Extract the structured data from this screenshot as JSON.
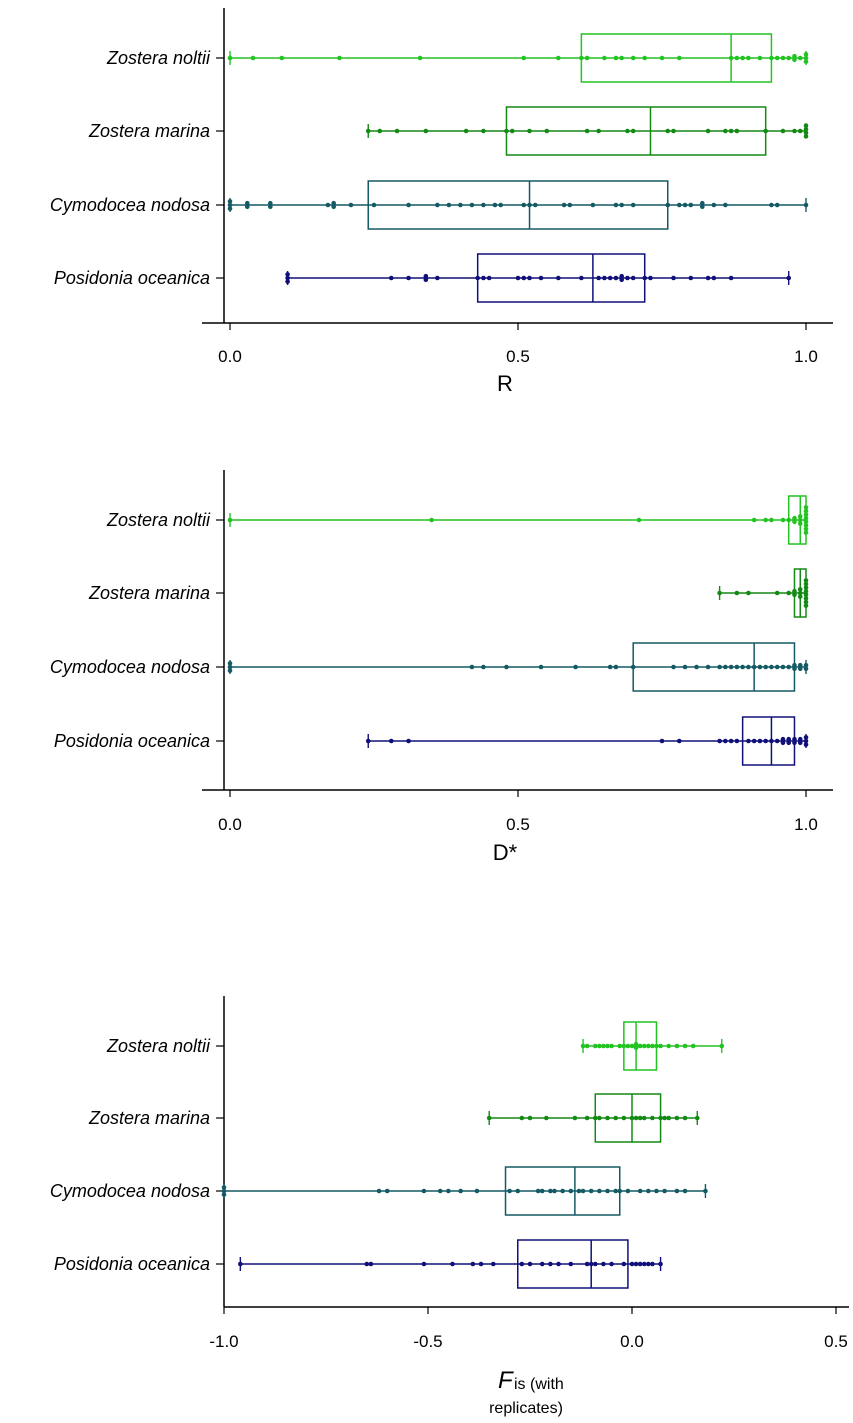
{
  "colors": {
    "Zostera noltii": "#22c422",
    "Zostera marina": "#138a13",
    "Cymodocea nodosa": "#145a64",
    "Posidonia oceanica": "#10107a"
  },
  "chart_data": [
    {
      "type": "box",
      "orientation": "horizontal",
      "xlabel": "R",
      "xlim": [
        -0.05,
        1.05
      ],
      "xticks": [
        0.0,
        0.5,
        1.0
      ],
      "xtick_labels": [
        "0.0",
        "0.5",
        "1.0"
      ],
      "categories": [
        "Zostera noltii",
        "Zostera marina",
        "Cymodocea nodosa",
        "Posidonia oceanica"
      ],
      "series": [
        {
          "name": "Zostera noltii",
          "whisker_low": 0.0,
          "q1": 0.61,
          "median": 0.87,
          "q3": 0.94,
          "whisker_high": 1.0,
          "points": [
            0.0,
            0.04,
            0.09,
            0.19,
            0.33,
            0.51,
            0.57,
            0.61,
            0.62,
            0.65,
            0.67,
            0.68,
            0.7,
            0.72,
            0.75,
            0.78,
            0.87,
            0.88,
            0.89,
            0.9,
            0.92,
            0.94,
            0.95,
            0.96,
            0.97,
            0.98,
            0.98,
            0.99,
            1.0,
            1.0,
            1.0
          ]
        },
        {
          "name": "Zostera marina",
          "whisker_low": 0.24,
          "q1": 0.48,
          "median": 0.73,
          "q3": 0.93,
          "whisker_high": 1.0,
          "points": [
            0.24,
            0.26,
            0.29,
            0.34,
            0.41,
            0.44,
            0.48,
            0.49,
            0.52,
            0.55,
            0.62,
            0.64,
            0.69,
            0.7,
            0.76,
            0.77,
            0.83,
            0.86,
            0.87,
            0.88,
            0.93,
            0.96,
            0.98,
            0.99,
            1.0,
            1.0,
            1.0,
            1.0
          ]
        },
        {
          "name": "Cymodocea nodosa",
          "whisker_low": 0.0,
          "q1": 0.24,
          "median": 0.52,
          "q3": 0.76,
          "whisker_high": 1.0,
          "points": [
            0.0,
            0.0,
            0.0,
            0.03,
            0.03,
            0.07,
            0.07,
            0.17,
            0.18,
            0.18,
            0.21,
            0.25,
            0.31,
            0.36,
            0.38,
            0.4,
            0.42,
            0.44,
            0.46,
            0.47,
            0.51,
            0.52,
            0.53,
            0.58,
            0.59,
            0.63,
            0.67,
            0.68,
            0.7,
            0.76,
            0.78,
            0.79,
            0.8,
            0.82,
            0.82,
            0.84,
            0.86,
            0.94,
            0.95,
            1.0
          ]
        },
        {
          "name": "Posidonia oceanica",
          "whisker_low": 0.1,
          "q1": 0.43,
          "median": 0.63,
          "q3": 0.72,
          "whisker_high": 0.97,
          "points": [
            0.1,
            0.1,
            0.1,
            0.28,
            0.31,
            0.34,
            0.34,
            0.36,
            0.43,
            0.44,
            0.45,
            0.5,
            0.51,
            0.52,
            0.54,
            0.57,
            0.61,
            0.64,
            0.65,
            0.66,
            0.67,
            0.68,
            0.68,
            0.69,
            0.7,
            0.72,
            0.73,
            0.77,
            0.8,
            0.83,
            0.84,
            0.87,
            0.97
          ]
        }
      ]
    },
    {
      "type": "box",
      "orientation": "horizontal",
      "xlabel": "D*",
      "xlim": [
        -0.05,
        1.05
      ],
      "xticks": [
        0.0,
        0.5,
        1.0
      ],
      "xtick_labels": [
        "0.0",
        "0.5",
        "1.0"
      ],
      "categories": [
        "Zostera noltii",
        "Zostera marina",
        "Cymodocea nodosa",
        "Posidonia oceanica"
      ],
      "series": [
        {
          "name": "Zostera noltii",
          "whisker_low": 0.0,
          "q1": 0.97,
          "median": 0.99,
          "q3": 1.0,
          "whisker_high": 1.0,
          "points": [
            0.0,
            0.35,
            0.71,
            0.91,
            0.93,
            0.94,
            0.96,
            0.97,
            0.98,
            0.98,
            0.99,
            0.99,
            0.99,
            1.0,
            1.0,
            1.0,
            1.0,
            1.0,
            1.0,
            1.0,
            1.0
          ]
        },
        {
          "name": "Zostera marina",
          "whisker_low": 0.85,
          "q1": 0.98,
          "median": 0.99,
          "q3": 1.0,
          "whisker_high": 1.0,
          "points": [
            0.85,
            0.88,
            0.9,
            0.95,
            0.97,
            0.98,
            0.98,
            0.99,
            0.99,
            0.99,
            1.0,
            1.0,
            1.0,
            1.0,
            1.0,
            1.0,
            1.0,
            1.0
          ]
        },
        {
          "name": "Cymodocea nodosa",
          "whisker_low": 0.0,
          "q1": 0.7,
          "median": 0.91,
          "q3": 0.98,
          "whisker_high": 1.0,
          "points": [
            0.0,
            0.0,
            0.0,
            0.42,
            0.44,
            0.48,
            0.54,
            0.6,
            0.66,
            0.67,
            0.7,
            0.77,
            0.79,
            0.81,
            0.83,
            0.85,
            0.86,
            0.87,
            0.88,
            0.89,
            0.9,
            0.91,
            0.92,
            0.93,
            0.94,
            0.95,
            0.96,
            0.97,
            0.98,
            0.98,
            0.99,
            0.99,
            1.0,
            1.0
          ]
        },
        {
          "name": "Posidonia oceanica",
          "whisker_low": 0.24,
          "q1": 0.89,
          "median": 0.94,
          "q3": 0.98,
          "whisker_high": 1.0,
          "points": [
            0.24,
            0.28,
            0.31,
            0.75,
            0.78,
            0.85,
            0.86,
            0.87,
            0.88,
            0.9,
            0.91,
            0.92,
            0.93,
            0.94,
            0.95,
            0.96,
            0.96,
            0.97,
            0.97,
            0.98,
            0.98,
            0.99,
            0.99,
            1.0,
            1.0,
            1.0
          ]
        }
      ]
    },
    {
      "type": "box",
      "orientation": "horizontal",
      "xlabel_main": "F",
      "xlabel_sub": "is (with",
      "xlabel_sub2": "replicates)",
      "xlim": [
        -1.0,
        0.52
      ],
      "xticks": [
        -1.0,
        -0.5,
        0.0,
        0.5
      ],
      "xtick_labels": [
        "-1.0",
        "-0.5",
        "0.0",
        "0.5"
      ],
      "categories": [
        "Zostera noltii",
        "Zostera marina",
        "Cymodocea nodosa",
        "Posidonia oceanica"
      ],
      "series": [
        {
          "name": "Zostera noltii",
          "whisker_low": -0.12,
          "q1": -0.02,
          "median": 0.01,
          "q3": 0.06,
          "whisker_high": 0.22,
          "points": [
            -0.12,
            -0.11,
            -0.09,
            -0.08,
            -0.07,
            -0.06,
            -0.05,
            -0.03,
            -0.02,
            -0.01,
            0.0,
            0.01,
            0.01,
            0.02,
            0.03,
            0.04,
            0.05,
            0.06,
            0.07,
            0.09,
            0.11,
            0.13,
            0.15,
            0.22
          ]
        },
        {
          "name": "Zostera marina",
          "whisker_low": -0.35,
          "q1": -0.09,
          "median": 0.0,
          "q3": 0.07,
          "whisker_high": 0.16,
          "points": [
            -0.35,
            -0.27,
            -0.25,
            -0.21,
            -0.14,
            -0.11,
            -0.09,
            -0.08,
            -0.06,
            -0.04,
            -0.02,
            0.0,
            0.01,
            0.02,
            0.03,
            0.05,
            0.07,
            0.08,
            0.09,
            0.11,
            0.13,
            0.16
          ]
        },
        {
          "name": "Cymodocea nodosa",
          "whisker_low": -1.0,
          "q1": -0.31,
          "median": -0.14,
          "q3": -0.03,
          "whisker_high": 0.18,
          "points": [
            -1.0,
            -1.0,
            -1.0,
            -0.62,
            -0.6,
            -0.51,
            -0.47,
            -0.45,
            -0.42,
            -0.38,
            -0.3,
            -0.28,
            -0.23,
            -0.22,
            -0.2,
            -0.19,
            -0.17,
            -0.15,
            -0.13,
            -0.12,
            -0.1,
            -0.08,
            -0.06,
            -0.04,
            -0.03,
            -0.01,
            0.02,
            0.04,
            0.06,
            0.08,
            0.11,
            0.13,
            0.18
          ]
        },
        {
          "name": "Posidonia oceanica",
          "whisker_low": -0.96,
          "q1": -0.28,
          "median": -0.1,
          "q3": -0.01,
          "whisker_high": 0.07,
          "points": [
            -0.96,
            -0.65,
            -0.64,
            -0.51,
            -0.44,
            -0.39,
            -0.37,
            -0.34,
            -0.27,
            -0.25,
            -0.22,
            -0.2,
            -0.18,
            -0.15,
            -0.11,
            -0.1,
            -0.09,
            -0.07,
            -0.05,
            -0.02,
            0.0,
            0.01,
            0.02,
            0.03,
            0.04,
            0.05,
            0.07
          ]
        }
      ]
    }
  ]
}
